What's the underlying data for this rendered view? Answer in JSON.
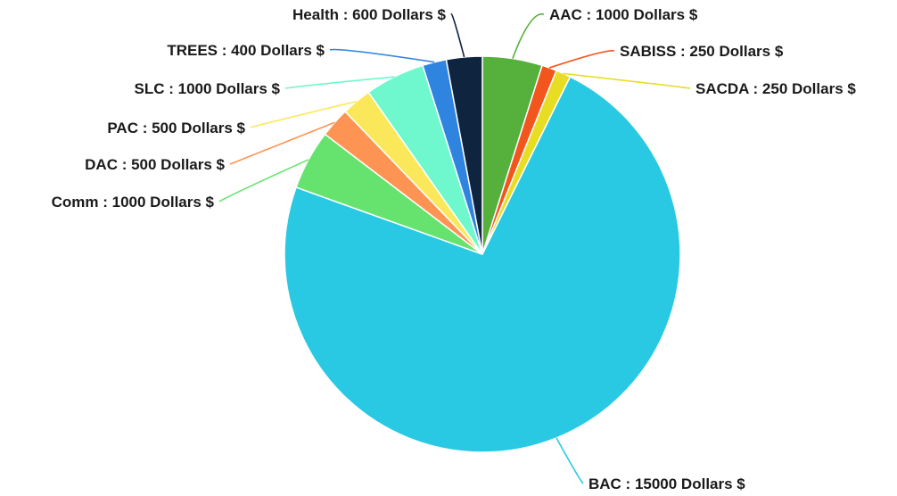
{
  "chart_data": {
    "type": "pie",
    "slices": [
      {
        "label": "AAC",
        "value": 1000,
        "unit": "Dollars $",
        "color": "#55b03c"
      },
      {
        "label": "SABISS",
        "value": 250,
        "unit": "Dollars $",
        "color": "#f2561d"
      },
      {
        "label": "SACDA",
        "value": 250,
        "unit": "Dollars $",
        "color": "#e7de23"
      },
      {
        "label": "BAC",
        "value": 15000,
        "unit": "Dollars $",
        "color": "#29c9e3"
      },
      {
        "label": "Comm",
        "value": 1000,
        "unit": "Dollars $",
        "color": "#66e36e"
      },
      {
        "label": "DAC",
        "value": 500,
        "unit": "Dollars $",
        "color": "#fd9453"
      },
      {
        "label": "PAC",
        "value": 500,
        "unit": "Dollars $",
        "color": "#fbe85a"
      },
      {
        "label": "SLC",
        "value": 1000,
        "unit": "Dollars $",
        "color": "#6ff7cd"
      },
      {
        "label": "TREES",
        "value": 400,
        "unit": "Dollars $",
        "color": "#2e84df"
      },
      {
        "label": "Health",
        "value": 600,
        "unit": "Dollars $",
        "color": "#0f243e"
      }
    ]
  }
}
